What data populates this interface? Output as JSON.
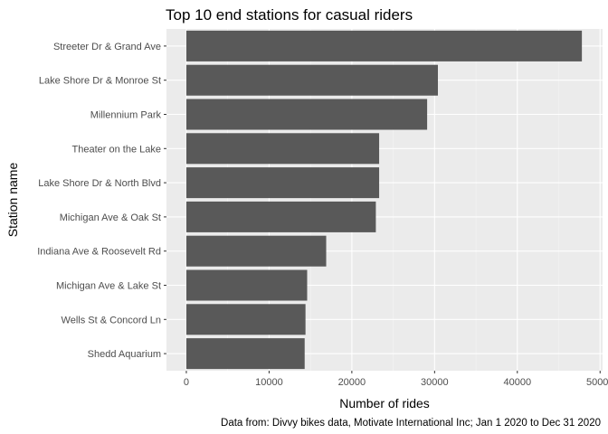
{
  "chart_data": {
    "type": "bar",
    "orientation": "horizontal",
    "title": "Top 10 end stations for casual riders",
    "xlabel": "Number of rides",
    "ylabel": "Station name",
    "caption": "Data from: Divvy bikes data, Motivate International Inc; Jan 1 2020 to Dec 31 2020",
    "categories": [
      "Streeter Dr & Grand Ave",
      "Lake Shore Dr & Monroe St",
      "Millennium Park",
      "Theater on the Lake",
      "Lake Shore Dr & North Blvd",
      "Michigan Ave & Oak St",
      "Indiana Ave & Roosevelt Rd",
      "Michigan Ave & Lake St",
      "Wells St & Concord Ln",
      "Shedd Aquarium"
    ],
    "values": [
      47800,
      30400,
      29100,
      23300,
      23300,
      22900,
      16900,
      14600,
      14400,
      14300
    ],
    "xlim": [
      -2400,
      50300
    ],
    "x_ticks": [
      0,
      10000,
      20000,
      30000,
      40000,
      50000
    ],
    "x_tick_labels": [
      "0",
      "10000",
      "20000",
      "30000",
      "40000",
      "50000"
    ],
    "grid": true,
    "colors": {
      "bar": "#595959",
      "panel": "#ebebeb",
      "grid_major": "#ffffff",
      "grid_minor": "#f5f5f5"
    }
  }
}
